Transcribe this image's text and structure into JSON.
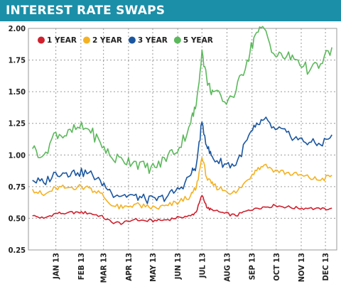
{
  "chart_data": {
    "type": "line",
    "title": "INTEREST RATE SWAPS",
    "xlabel": "",
    "ylabel": "",
    "ylim": [
      0.25,
      2.0
    ],
    "yticks": [
      "0.25",
      "0.50",
      "0.75",
      "1.00",
      "1.25",
      "1.50",
      "1.75",
      "2.00"
    ],
    "xticks": [
      "JAN 13",
      "FEB 13",
      "MAR 13",
      "APR 13",
      "MAY 13",
      "JUN 13",
      "JUL 13",
      "AUG 13",
      "SEP 13",
      "OCT 13",
      "NOV 13",
      "DEC 13"
    ],
    "grid": true,
    "legend": "top-left",
    "x_dates": [
      "2012-12-03",
      "2012-12-17",
      "2013-01-01",
      "2013-01-14",
      "2013-01-28",
      "2013-02-11",
      "2013-02-25",
      "2013-03-11",
      "2013-03-25",
      "2013-04-08",
      "2013-04-22",
      "2013-05-06",
      "2013-05-20",
      "2013-06-03",
      "2013-06-17",
      "2013-06-24",
      "2013-07-01",
      "2013-07-08",
      "2013-07-15",
      "2013-07-29",
      "2013-08-12",
      "2013-08-26",
      "2013-09-05",
      "2013-09-16",
      "2013-09-30",
      "2013-10-14",
      "2013-10-28",
      "2013-11-11",
      "2013-11-25",
      "2013-12-09"
    ],
    "series": [
      {
        "name": "1 YEAR",
        "color": "#d0202e",
        "values": [
          0.52,
          0.5,
          0.54,
          0.54,
          0.55,
          0.54,
          0.52,
          0.47,
          0.46,
          0.49,
          0.48,
          0.48,
          0.49,
          0.51,
          0.52,
          0.55,
          0.68,
          0.58,
          0.56,
          0.54,
          0.52,
          0.56,
          0.58,
          0.59,
          0.6,
          0.59,
          0.58,
          0.58,
          0.57,
          0.58
        ]
      },
      {
        "name": "2 YEAR",
        "color": "#f4b223",
        "values": [
          0.73,
          0.68,
          0.74,
          0.74,
          0.75,
          0.74,
          0.7,
          0.6,
          0.58,
          0.61,
          0.59,
          0.58,
          0.6,
          0.63,
          0.68,
          0.74,
          0.98,
          0.8,
          0.76,
          0.72,
          0.7,
          0.8,
          0.88,
          0.92,
          0.88,
          0.86,
          0.84,
          0.82,
          0.8,
          0.84
        ]
      },
      {
        "name": "3 YEAR",
        "color": "#1a56a0",
        "values": [
          0.8,
          0.78,
          0.86,
          0.86,
          0.86,
          0.86,
          0.8,
          0.7,
          0.68,
          0.68,
          0.65,
          0.64,
          0.68,
          0.73,
          0.84,
          0.92,
          1.26,
          1.05,
          0.97,
          0.93,
          0.92,
          1.12,
          1.22,
          1.28,
          1.2,
          1.18,
          1.12,
          1.1,
          1.08,
          1.16
        ]
      },
      {
        "name": "5 YEAR",
        "color": "#5cb85c",
        "values": [
          1.05,
          1.0,
          1.18,
          1.15,
          1.22,
          1.2,
          1.1,
          0.98,
          0.96,
          0.95,
          0.9,
          0.9,
          1.0,
          1.06,
          1.25,
          1.4,
          1.83,
          1.55,
          1.5,
          1.42,
          1.5,
          1.75,
          1.95,
          2.0,
          1.78,
          1.78,
          1.75,
          1.66,
          1.72,
          1.85
        ]
      }
    ]
  }
}
